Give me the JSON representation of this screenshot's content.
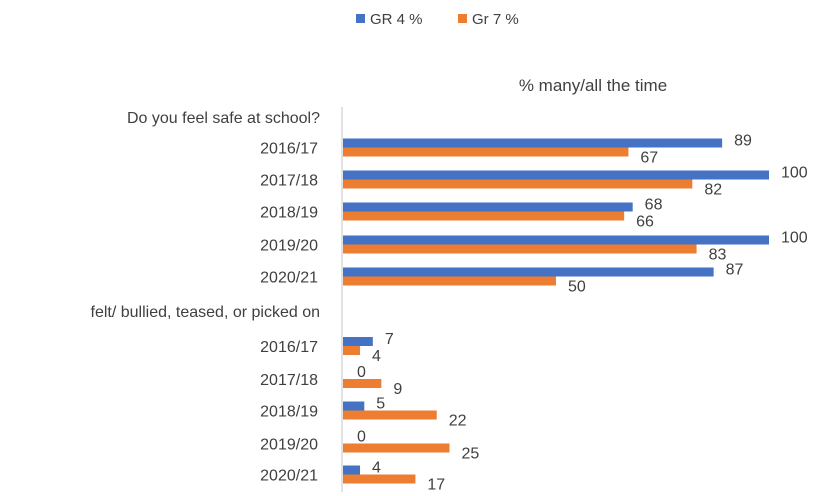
{
  "chart_data": {
    "type": "bar",
    "orientation": "horizontal",
    "subtitle": "% many/all the time",
    "legend": {
      "position": "top",
      "entries": [
        "GR 4 %",
        "Gr 7 %"
      ]
    },
    "colors": {
      "series1": "#4472C4",
      "series2": "#ED7D31",
      "axis": "#D9D9D9",
      "text": "#404040"
    },
    "xlim": [
      0,
      100
    ],
    "grid": false,
    "groups": [
      {
        "label": "Do you feel safe at school?",
        "categories": [
          "2016/17",
          "2017/18",
          "2018/19",
          "2019/20",
          "2020/21"
        ],
        "series": [
          {
            "name": "GR 4 %",
            "values": [
              89,
              100,
              68,
              100,
              87
            ]
          },
          {
            "name": "Gr 7 %",
            "values": [
              67,
              82,
              66,
              83,
              50
            ]
          }
        ]
      },
      {
        "label": "felt/ bullied, teased, or picked on",
        "categories": [
          "2016/17",
          "2017/18",
          "2018/19",
          "2019/20",
          "2020/21"
        ],
        "series": [
          {
            "name": "GR 4 %",
            "values": [
              7,
              0,
              5,
              0,
              4
            ]
          },
          {
            "name": "Gr 7 %",
            "values": [
              4,
              9,
              22,
              25,
              17
            ]
          }
        ]
      }
    ]
  }
}
